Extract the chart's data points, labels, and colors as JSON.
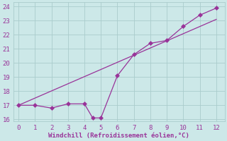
{
  "line1_x": [
    0,
    1,
    2,
    3,
    4,
    4.5,
    5,
    6,
    7,
    8,
    9,
    10,
    11,
    12
  ],
  "line1_y": [
    17.0,
    17.0,
    16.8,
    17.1,
    17.1,
    16.1,
    16.1,
    19.1,
    20.6,
    21.4,
    21.6,
    22.6,
    23.4,
    23.9
  ],
  "line2_x": [
    0,
    12
  ],
  "line2_y": [
    17.0,
    23.1
  ],
  "line_color": "#993399",
  "marker": "D",
  "marker_size": 3,
  "xlim": [
    -0.3,
    12.5
  ],
  "ylim": [
    15.85,
    24.3
  ],
  "xticks": [
    0,
    1,
    2,
    3,
    4,
    5,
    6,
    7,
    8,
    9,
    10,
    11,
    12
  ],
  "yticks": [
    16,
    17,
    18,
    19,
    20,
    21,
    22,
    23,
    24
  ],
  "xlabel": "Windchill (Refroidissement éolien,°C)",
  "bg_color": "#cce8e8",
  "grid_color": "#aacccc",
  "text_color": "#993399",
  "font_size": 6.5
}
